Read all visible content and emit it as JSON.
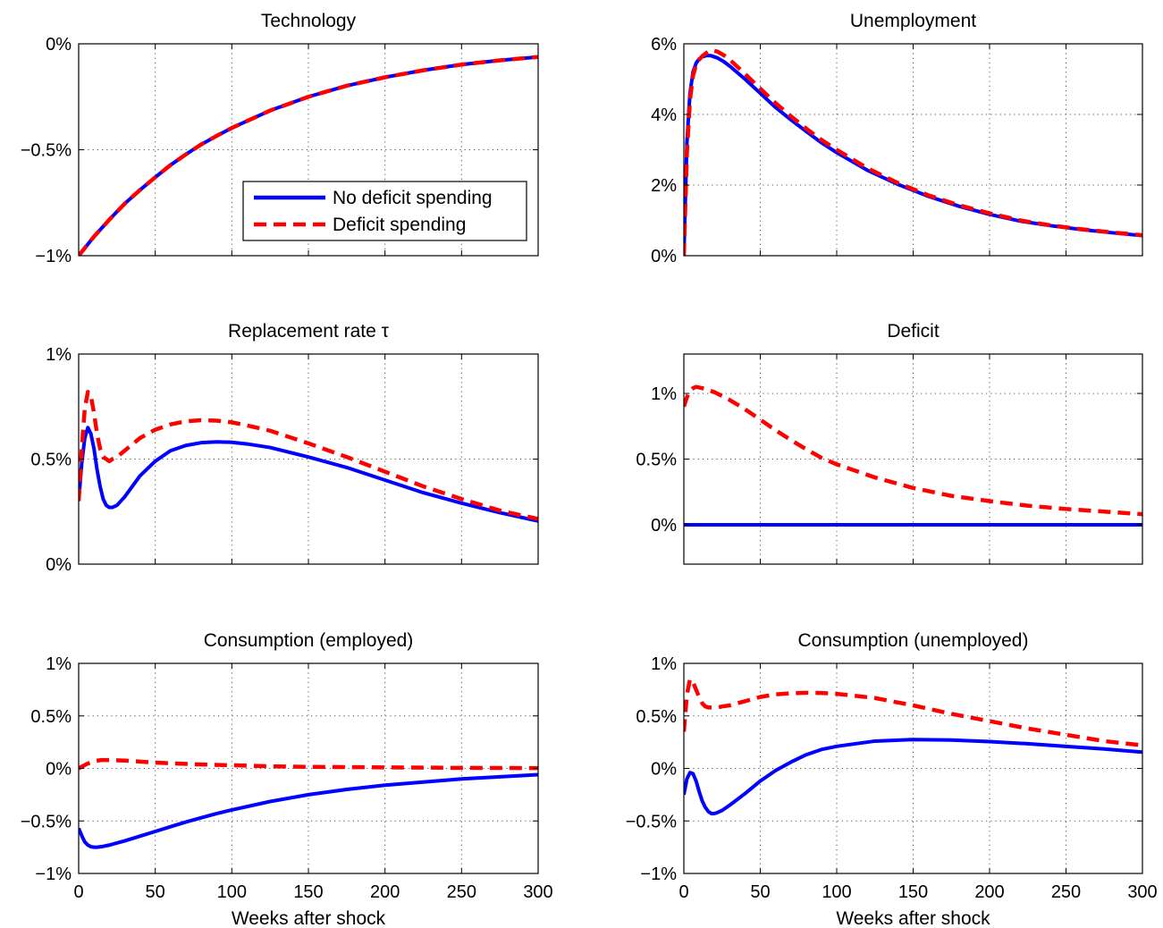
{
  "colors": {
    "no_deficit": "#0000ff",
    "deficit": "#ff0000",
    "grid": "#555555",
    "axes": "#000000"
  },
  "chart_data": [
    {
      "type": "line",
      "title": "Technology",
      "xlabel": "",
      "ylabel": "",
      "xlim": [
        0,
        300
      ],
      "ylim": [
        -1,
        0
      ],
      "yticks": [
        -1,
        -0.5,
        0
      ],
      "ytick_labels": [
        "−1%",
        "−0.5%",
        "0%"
      ],
      "xticks": [
        0,
        50,
        100,
        150,
        200,
        250,
        300
      ],
      "xtick_labels": [],
      "grid": true,
      "legend": {
        "placement": "bottom-right",
        "entries": [
          {
            "label": "No deficit spending",
            "style": "solid",
            "color": "#0000ff"
          },
          {
            "label": "Deficit spending",
            "style": "dashed",
            "color": "#ff0000"
          }
        ]
      },
      "series": [
        {
          "name": "No deficit spending",
          "style": "solid",
          "color": "#0000ff",
          "x": [
            0,
            10,
            20,
            30,
            40,
            50,
            60,
            70,
            80,
            90,
            100,
            125,
            150,
            175,
            200,
            225,
            250,
            275,
            300
          ],
          "y": [
            -1,
            -0.91,
            -0.83,
            -0.755,
            -0.69,
            -0.63,
            -0.572,
            -0.522,
            -0.475,
            -0.435,
            -0.397,
            -0.315,
            -0.25,
            -0.198,
            -0.158,
            -0.125,
            -0.098,
            -0.078,
            -0.062
          ]
        },
        {
          "name": "Deficit spending",
          "style": "dashed",
          "color": "#ff0000",
          "x": [
            0,
            10,
            20,
            30,
            40,
            50,
            60,
            70,
            80,
            90,
            100,
            125,
            150,
            175,
            200,
            225,
            250,
            275,
            300
          ],
          "y": [
            -1,
            -0.91,
            -0.83,
            -0.755,
            -0.69,
            -0.63,
            -0.572,
            -0.522,
            -0.475,
            -0.435,
            -0.397,
            -0.315,
            -0.25,
            -0.198,
            -0.158,
            -0.125,
            -0.098,
            -0.078,
            -0.062
          ]
        }
      ]
    },
    {
      "type": "line",
      "title": "Unemployment",
      "xlabel": "",
      "ylabel": "",
      "xlim": [
        0,
        300
      ],
      "ylim": [
        0,
        6
      ],
      "yticks": [
        0,
        2,
        4,
        6
      ],
      "ytick_labels": [
        "0%",
        "2%",
        "4%",
        "6%"
      ],
      "xticks": [
        0,
        50,
        100,
        150,
        200,
        250,
        300
      ],
      "xtick_labels": [],
      "grid": true,
      "series": [
        {
          "name": "No deficit spending",
          "style": "solid",
          "color": "#0000ff",
          "x": [
            0,
            2,
            4,
            6,
            8,
            10,
            12,
            15,
            18,
            22,
            26,
            30,
            40,
            50,
            60,
            70,
            80,
            90,
            100,
            120,
            140,
            160,
            180,
            200,
            220,
            240,
            260,
            280,
            300
          ],
          "y": [
            0,
            3.2,
            4.6,
            5.2,
            5.45,
            5.57,
            5.63,
            5.67,
            5.66,
            5.6,
            5.5,
            5.37,
            5.0,
            4.6,
            4.2,
            3.85,
            3.52,
            3.2,
            2.92,
            2.42,
            2.02,
            1.68,
            1.4,
            1.17,
            0.98,
            0.85,
            0.74,
            0.65,
            0.57
          ]
        },
        {
          "name": "Deficit spending",
          "style": "dashed",
          "color": "#ff0000",
          "x": [
            0,
            2,
            4,
            6,
            8,
            10,
            12,
            15,
            18,
            22,
            26,
            30,
            40,
            50,
            60,
            70,
            80,
            90,
            100,
            120,
            140,
            160,
            180,
            200,
            220,
            240,
            260,
            280,
            300
          ],
          "y": [
            0,
            2.9,
            4.4,
            5.1,
            5.4,
            5.55,
            5.65,
            5.75,
            5.82,
            5.78,
            5.68,
            5.55,
            5.15,
            4.73,
            4.32,
            3.95,
            3.6,
            3.28,
            3.0,
            2.48,
            2.06,
            1.71,
            1.43,
            1.2,
            1.0,
            0.86,
            0.75,
            0.66,
            0.58
          ]
        }
      ]
    },
    {
      "type": "line",
      "title": "Replacement rate τ",
      "xlabel": "",
      "ylabel": "",
      "xlim": [
        0,
        300
      ],
      "ylim": [
        0,
        1
      ],
      "yticks": [
        0,
        0.5,
        1
      ],
      "ytick_labels": [
        "0%",
        "0.5%",
        "1%"
      ],
      "xticks": [
        0,
        50,
        100,
        150,
        200,
        250,
        300
      ],
      "xtick_labels": [],
      "grid": true,
      "series": [
        {
          "name": "No deficit spending",
          "style": "solid",
          "color": "#0000ff",
          "x": [
            0,
            2,
            4,
            6,
            8,
            10,
            12,
            14,
            16,
            18,
            20,
            22,
            25,
            30,
            35,
            40,
            50,
            60,
            70,
            80,
            90,
            100,
            110,
            125,
            150,
            175,
            200,
            225,
            250,
            275,
            300
          ],
          "y": [
            0.3,
            0.48,
            0.6,
            0.65,
            0.62,
            0.55,
            0.45,
            0.37,
            0.31,
            0.28,
            0.27,
            0.27,
            0.28,
            0.32,
            0.37,
            0.42,
            0.49,
            0.54,
            0.565,
            0.578,
            0.582,
            0.58,
            0.572,
            0.555,
            0.51,
            0.46,
            0.4,
            0.34,
            0.29,
            0.245,
            0.205
          ]
        },
        {
          "name": "Deficit spending",
          "style": "dashed",
          "color": "#ff0000",
          "x": [
            0,
            2,
            4,
            6,
            8,
            10,
            12,
            14,
            16,
            18,
            20,
            22,
            25,
            30,
            35,
            40,
            50,
            60,
            70,
            80,
            90,
            100,
            110,
            125,
            150,
            175,
            200,
            225,
            250,
            275,
            300
          ],
          "y": [
            0.3,
            0.55,
            0.74,
            0.82,
            0.8,
            0.72,
            0.62,
            0.55,
            0.51,
            0.5,
            0.49,
            0.5,
            0.51,
            0.54,
            0.57,
            0.6,
            0.64,
            0.665,
            0.68,
            0.685,
            0.683,
            0.675,
            0.66,
            0.635,
            0.575,
            0.51,
            0.44,
            0.37,
            0.31,
            0.255,
            0.215
          ]
        }
      ]
    },
    {
      "type": "line",
      "title": "Deficit",
      "xlabel": "",
      "ylabel": "",
      "xlim": [
        0,
        300
      ],
      "ylim": [
        -0.3,
        1.3
      ],
      "yticks": [
        0,
        0.5,
        1
      ],
      "ytick_labels": [
        "0%",
        "0.5%",
        "1%"
      ],
      "xticks": [
        0,
        50,
        100,
        150,
        200,
        250,
        300
      ],
      "xtick_labels": [],
      "grid": true,
      "series": [
        {
          "name": "No deficit spending",
          "style": "solid",
          "color": "#0000ff",
          "x": [
            0,
            300
          ],
          "y": [
            0,
            0
          ]
        },
        {
          "name": "Deficit spending",
          "style": "dashed",
          "color": "#ff0000",
          "x": [
            0,
            2,
            4,
            6,
            8,
            10,
            12,
            15,
            20,
            30,
            40,
            50,
            60,
            70,
            80,
            90,
            100,
            125,
            150,
            175,
            200,
            225,
            250,
            275,
            300
          ],
          "y": [
            0.9,
            0.97,
            1.02,
            1.04,
            1.05,
            1.045,
            1.04,
            1.03,
            1.01,
            0.95,
            0.88,
            0.8,
            0.72,
            0.645,
            0.575,
            0.51,
            0.46,
            0.36,
            0.28,
            0.22,
            0.18,
            0.145,
            0.12,
            0.1,
            0.08
          ]
        }
      ]
    },
    {
      "type": "line",
      "title": "Consumption (employed)",
      "xlabel": "Weeks after shock",
      "ylabel": "",
      "xlim": [
        0,
        300
      ],
      "ylim": [
        -1,
        1
      ],
      "yticks": [
        -1,
        -0.5,
        0,
        0.5,
        1
      ],
      "ytick_labels": [
        "−1%",
        "−0.5%",
        "0%",
        "0.5%",
        "1%"
      ],
      "xticks": [
        0,
        50,
        100,
        150,
        200,
        250,
        300
      ],
      "xtick_labels": [
        "0",
        "50",
        "100",
        "150",
        "200",
        "250",
        "300"
      ],
      "grid": true,
      "series": [
        {
          "name": "No deficit spending",
          "style": "solid",
          "color": "#0000ff",
          "x": [
            0,
            2,
            4,
            6,
            8,
            10,
            12,
            15,
            20,
            25,
            30,
            40,
            50,
            60,
            70,
            80,
            90,
            100,
            125,
            150,
            175,
            200,
            225,
            250,
            275,
            300
          ],
          "y": [
            -0.57,
            -0.64,
            -0.7,
            -0.73,
            -0.745,
            -0.75,
            -0.75,
            -0.745,
            -0.73,
            -0.71,
            -0.69,
            -0.645,
            -0.6,
            -0.555,
            -0.51,
            -0.47,
            -0.43,
            -0.395,
            -0.315,
            -0.25,
            -0.2,
            -0.16,
            -0.13,
            -0.1,
            -0.08,
            -0.06
          ]
        },
        {
          "name": "Deficit spending",
          "style": "dashed",
          "color": "#ff0000",
          "x": [
            0,
            5,
            10,
            15,
            20,
            30,
            40,
            50,
            75,
            100,
            125,
            150,
            200,
            250,
            300
          ],
          "y": [
            0.0,
            0.04,
            0.07,
            0.08,
            0.08,
            0.075,
            0.065,
            0.055,
            0.04,
            0.03,
            0.02,
            0.015,
            0.01,
            0.005,
            0.003
          ]
        }
      ]
    },
    {
      "type": "line",
      "title": "Consumption (unemployed)",
      "xlabel": "Weeks after shock",
      "ylabel": "",
      "xlim": [
        0,
        300
      ],
      "ylim": [
        -1,
        1
      ],
      "yticks": [
        -1,
        -0.5,
        0,
        0.5,
        1
      ],
      "ytick_labels": [
        "−1%",
        "−0.5%",
        "0%",
        "0.5%",
        "1%"
      ],
      "xticks": [
        0,
        50,
        100,
        150,
        200,
        250,
        300
      ],
      "xtick_labels": [
        "0",
        "50",
        "100",
        "150",
        "200",
        "250",
        "300"
      ],
      "grid": true,
      "series": [
        {
          "name": "No deficit spending",
          "style": "solid",
          "color": "#0000ff",
          "x": [
            0,
            2,
            4,
            6,
            8,
            10,
            12,
            14,
            16,
            18,
            20,
            22,
            25,
            30,
            40,
            50,
            60,
            70,
            80,
            90,
            100,
            125,
            150,
            175,
            200,
            225,
            250,
            275,
            300
          ],
          "y": [
            -0.25,
            -0.1,
            -0.04,
            -0.05,
            -0.12,
            -0.22,
            -0.31,
            -0.37,
            -0.41,
            -0.43,
            -0.43,
            -0.42,
            -0.4,
            -0.35,
            -0.24,
            -0.12,
            -0.02,
            0.06,
            0.13,
            0.18,
            0.21,
            0.26,
            0.275,
            0.27,
            0.255,
            0.235,
            0.21,
            0.185,
            0.155
          ]
        },
        {
          "name": "Deficit spending",
          "style": "dashed",
          "color": "#ff0000",
          "x": [
            0,
            2,
            4,
            6,
            8,
            10,
            12,
            14,
            16,
            18,
            20,
            22,
            25,
            30,
            40,
            50,
            60,
            70,
            80,
            90,
            100,
            125,
            150,
            175,
            200,
            225,
            250,
            275,
            300
          ],
          "y": [
            0.35,
            0.7,
            0.85,
            0.82,
            0.75,
            0.68,
            0.62,
            0.59,
            0.58,
            0.58,
            0.58,
            0.58,
            0.59,
            0.6,
            0.64,
            0.68,
            0.705,
            0.715,
            0.72,
            0.718,
            0.71,
            0.67,
            0.6,
            0.52,
            0.45,
            0.38,
            0.32,
            0.26,
            0.22
          ]
        }
      ]
    }
  ]
}
